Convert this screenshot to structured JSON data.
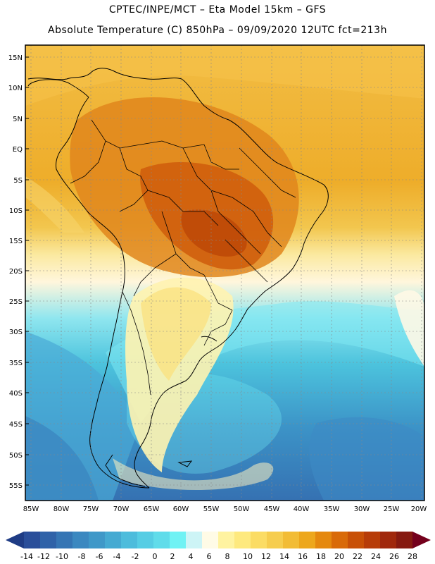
{
  "header": {
    "line1": "CPTEC/INPE/MCT –  Eta Model 15km – GFS",
    "line2": "Absolute Temperature (C) 850hPa – 09/09/2020 12UTC fct=213h"
  },
  "axes": {
    "lat_labels": [
      "15N",
      "10N",
      "5N",
      "EQ",
      "5S",
      "10S",
      "15S",
      "20S",
      "25S",
      "30S",
      "35S",
      "40S",
      "45S",
      "50S",
      "55S"
    ],
    "lon_labels": [
      "85W",
      "80W",
      "75W",
      "70W",
      "65W",
      "60W",
      "55W",
      "50W",
      "45W",
      "40W",
      "35W",
      "30W",
      "25W",
      "20W"
    ]
  },
  "colorbar": {
    "labels": [
      "-14",
      "-12",
      "-10",
      "-8",
      "-6",
      "-4",
      "-2",
      "0",
      "2",
      "4",
      "6",
      "8",
      "10",
      "12",
      "14",
      "16",
      "18",
      "20",
      "22",
      "24",
      "26",
      "28"
    ],
    "colors": [
      "#2a4e9a",
      "#2f62a8",
      "#3575b4",
      "#3b88c0",
      "#3f98c8",
      "#45aad2",
      "#4dbcdc",
      "#56cde4",
      "#60dcea",
      "#70f2f4",
      "#cdf4f6",
      "#fffbe6",
      "#fff3a0",
      "#fee97e",
      "#fbdc64",
      "#f6cd4e",
      "#f2bc35",
      "#eda71c",
      "#e5880e",
      "#d96a08",
      "#c85006",
      "#b73c08",
      "#a0280c",
      "#861a10"
    ],
    "low_arrow": "#1f3c85",
    "high_arrow": "#74001c"
  }
}
